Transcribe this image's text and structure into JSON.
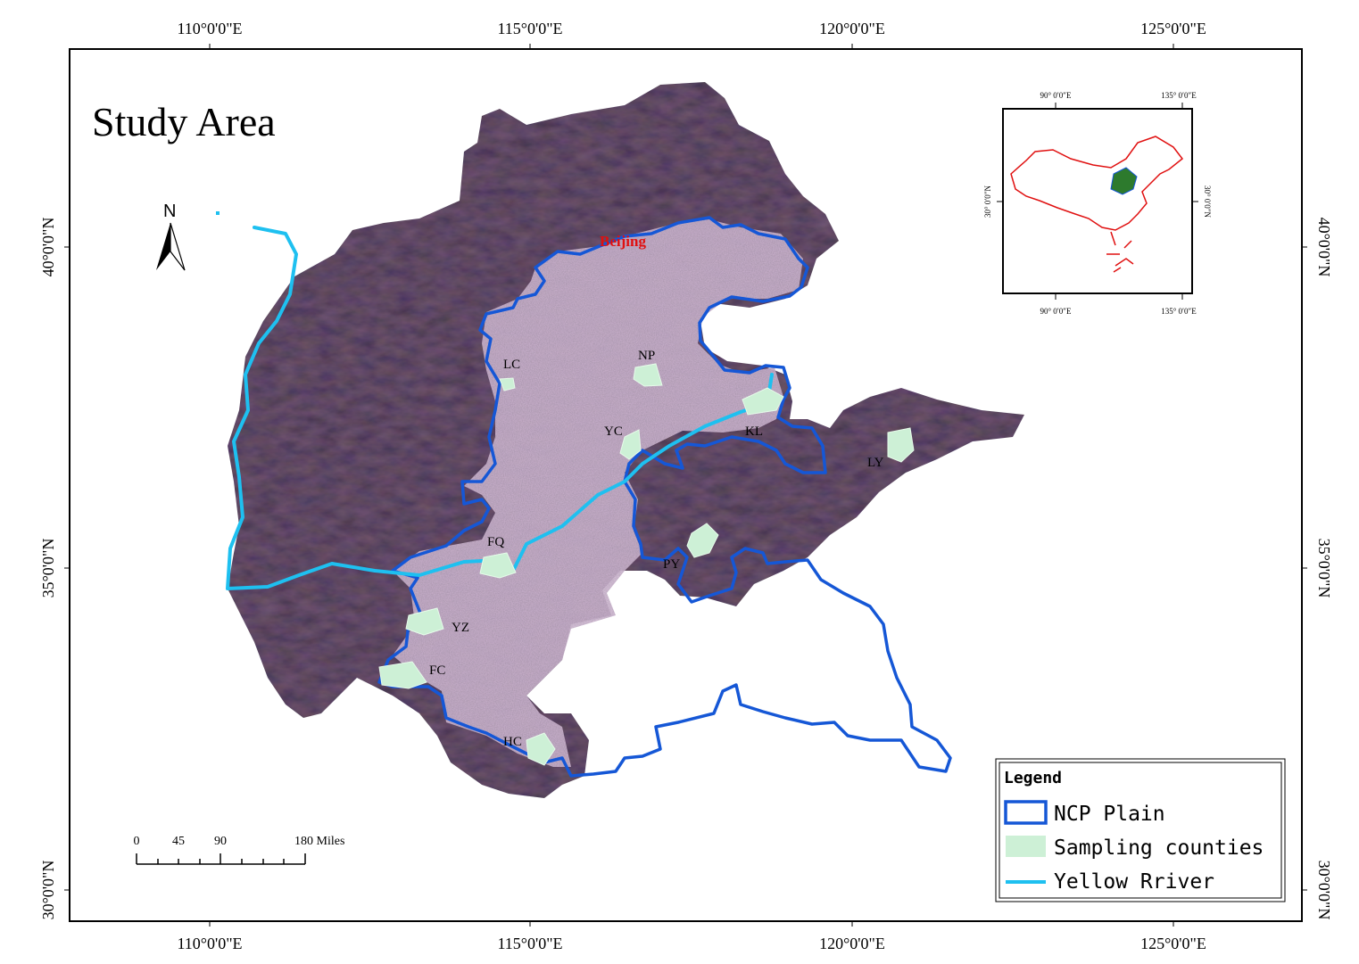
{
  "map": {
    "title": "Study Area",
    "city_label": "Beijing",
    "north_label": "N",
    "colors": {
      "terrain": "#7e5c7a",
      "terrain_plain": "#856a7e",
      "ncp_boundary": "#1557d6",
      "sampling_fill": "#cdf0d6",
      "yellow_river": "#1ec0f0",
      "city": "#e01010",
      "inset_china": "#e01010",
      "inset_study": "#2d7a2d"
    },
    "longitude_labels": [
      "110°0'0\"E",
      "115°0'0\"E",
      "120°0'0\"E",
      "125°0'0\"E"
    ],
    "latitude_labels": [
      "40°0'0\"N",
      "35°0'0\"N",
      "30°0'0\"N"
    ],
    "counties": [
      {
        "code": "LC"
      },
      {
        "code": "NP"
      },
      {
        "code": "YC"
      },
      {
        "code": "KL"
      },
      {
        "code": "LY"
      },
      {
        "code": "FQ"
      },
      {
        "code": "PY"
      },
      {
        "code": "YZ"
      },
      {
        "code": "FC"
      },
      {
        "code": "HC"
      }
    ]
  },
  "scale_bar": {
    "ticks": [
      "0",
      "45",
      "90",
      "180 Miles"
    ]
  },
  "inset": {
    "lon_labels": [
      "90° 0′0″E",
      "135° 0′0″E"
    ],
    "lat_label": "30° 0′0″N"
  },
  "legend": {
    "title": "Legend",
    "items": [
      {
        "label": "NCP Plain"
      },
      {
        "label": "Sampling counties"
      },
      {
        "label": "Yellow Rriver"
      }
    ]
  }
}
